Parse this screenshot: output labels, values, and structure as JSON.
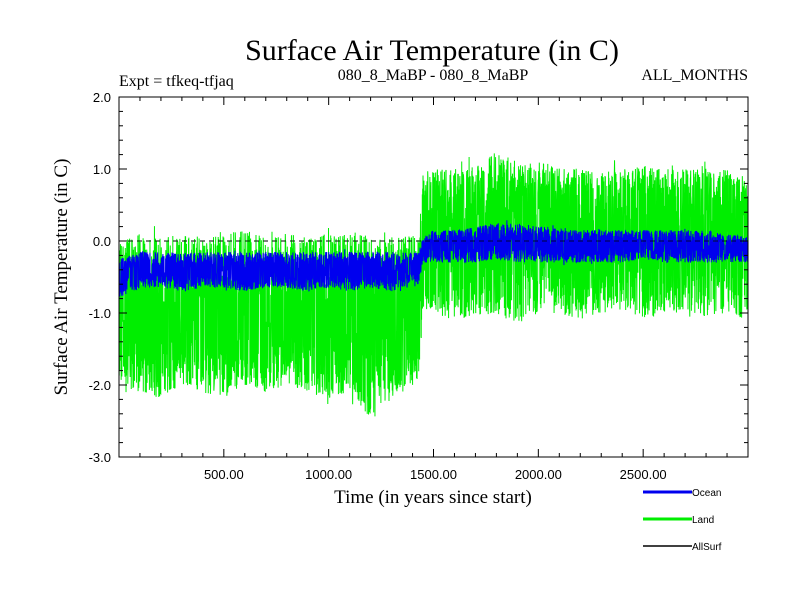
{
  "chart_data": {
    "type": "line",
    "title": "Surface Air Temperature (in C)",
    "subtitle_left": "Expt = tfkeq-tfjaq",
    "subtitle_center": "080_8_MaBP - 080_8_MaBP",
    "subtitle_right": "ALL_MONTHS",
    "xlabel": "Time (in years since start)",
    "ylabel": "Surface Air Temperature (in C)",
    "xlim": [
      0,
      3000
    ],
    "ylim": [
      -3.0,
      2.0
    ],
    "x_ticks": [
      500,
      1000,
      1500,
      2000,
      2500
    ],
    "x_tick_labels": [
      "500.00",
      "1000.00",
      "1500.00",
      "2000.00",
      "2500.00"
    ],
    "y_ticks": [
      2.0,
      1.0,
      0.0,
      -1.0,
      -2.0,
      -3.0
    ],
    "y_tick_labels": [
      "2.0",
      "1.0",
      "0.0",
      "-1.0",
      "-2.0",
      "-3.0"
    ],
    "zero_line": true,
    "grid": false,
    "legend_position": "bottom-right",
    "series": [
      {
        "name": "Land",
        "color": "#00ee00",
        "x": [
          0,
          100,
          200,
          300,
          400,
          500,
          600,
          700,
          800,
          900,
          1000,
          1100,
          1200,
          1300,
          1400,
          1430,
          1450,
          1500,
          1600,
          1700,
          1800,
          1900,
          2000,
          2100,
          2200,
          2300,
          2400,
          2500,
          2600,
          2700,
          2800,
          2900,
          3000
        ],
        "upper": [
          0.0,
          0.1,
          0.05,
          0.1,
          0.05,
          0.1,
          0.15,
          0.05,
          0.1,
          0.05,
          0.1,
          0.15,
          0.05,
          0.05,
          0.1,
          0.0,
          0.95,
          1.0,
          1.0,
          1.05,
          1.25,
          1.1,
          1.1,
          1.05,
          1.0,
          0.95,
          1.0,
          1.05,
          1.0,
          1.0,
          1.05,
          1.0,
          0.8
        ],
        "lower": [
          -2.1,
          -2.1,
          -2.2,
          -2.0,
          -2.1,
          -2.2,
          -2.0,
          -2.1,
          -2.0,
          -2.1,
          -2.2,
          -2.1,
          -2.5,
          -2.2,
          -2.0,
          -1.9,
          -0.95,
          -1.0,
          -1.1,
          -1.05,
          -1.0,
          -1.2,
          -1.0,
          -1.0,
          -1.1,
          -1.0,
          -0.95,
          -1.1,
          -1.0,
          -1.0,
          -1.05,
          -1.0,
          -1.1
        ],
        "mean": [
          -1.0,
          -1.05,
          -1.05,
          -1.0,
          -1.0,
          -1.05,
          -0.95,
          -1.0,
          -1.0,
          -1.0,
          -1.05,
          -1.0,
          -1.1,
          -1.05,
          -1.0,
          -0.95,
          0.05,
          0.1,
          0.05,
          0.1,
          0.15,
          0.05,
          0.1,
          0.05,
          0.0,
          0.05,
          0.05,
          0.0,
          0.05,
          0.0,
          0.05,
          0.05,
          0.0
        ]
      },
      {
        "name": "Ocean",
        "color": "#0000ee",
        "x": [
          0,
          100,
          200,
          300,
          400,
          500,
          600,
          700,
          800,
          900,
          1000,
          1100,
          1200,
          1300,
          1400,
          1430,
          1450,
          1500,
          1600,
          1700,
          1800,
          1900,
          2000,
          2100,
          2200,
          2300,
          2400,
          2500,
          2600,
          2700,
          2800,
          2900,
          3000
        ],
        "upper": [
          -0.25,
          -0.15,
          -0.15,
          -0.15,
          -0.15,
          -0.15,
          -0.15,
          -0.15,
          -0.15,
          -0.15,
          -0.15,
          -0.15,
          -0.15,
          -0.15,
          -0.15,
          -0.15,
          0.05,
          0.15,
          0.15,
          0.2,
          0.25,
          0.25,
          0.2,
          0.2,
          0.15,
          0.15,
          0.15,
          0.15,
          0.15,
          0.15,
          0.15,
          0.1,
          0.05
        ],
        "lower": [
          -0.8,
          -0.65,
          -0.65,
          -0.7,
          -0.65,
          -0.65,
          -0.7,
          -0.65,
          -0.65,
          -0.7,
          -0.65,
          -0.7,
          -0.65,
          -0.7,
          -0.6,
          -0.6,
          -0.3,
          -0.3,
          -0.3,
          -0.3,
          -0.25,
          -0.3,
          -0.3,
          -0.3,
          -0.3,
          -0.3,
          -0.3,
          -0.25,
          -0.3,
          -0.3,
          -0.3,
          -0.3,
          -0.3
        ],
        "mean": [
          -0.45,
          -0.4,
          -0.4,
          -0.42,
          -0.4,
          -0.4,
          -0.42,
          -0.4,
          -0.4,
          -0.42,
          -0.4,
          -0.42,
          -0.4,
          -0.42,
          -0.38,
          -0.38,
          -0.12,
          -0.07,
          -0.07,
          -0.05,
          -0.02,
          -0.03,
          -0.05,
          -0.05,
          -0.07,
          -0.07,
          -0.07,
          -0.05,
          -0.07,
          -0.07,
          -0.07,
          -0.1,
          -0.12
        ]
      },
      {
        "name": "AllSurf",
        "color": "#000000",
        "x": [
          0,
          3000
        ],
        "mean": [
          0.0,
          0.0
        ]
      }
    ]
  },
  "legend": {
    "items": [
      {
        "label": "Ocean",
        "color": "#0000ee"
      },
      {
        "label": "Land",
        "color": "#00ee00"
      },
      {
        "label": "AllSurf",
        "color": "#000000"
      }
    ]
  }
}
